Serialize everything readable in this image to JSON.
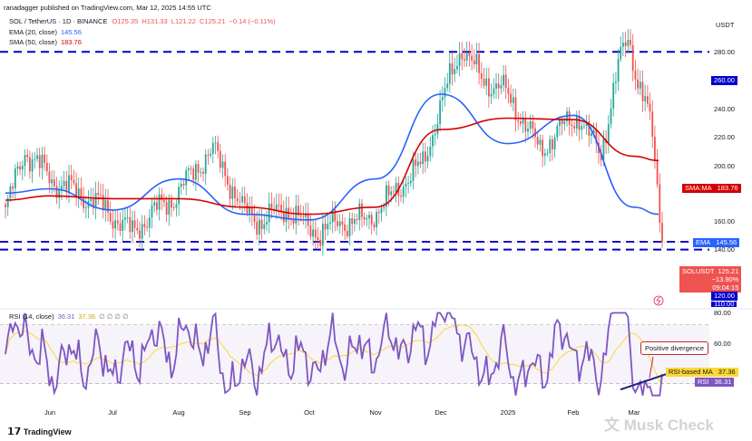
{
  "header": {
    "publisher": "ranadagger published on TradingView.com, Mar 12, 2025 14:55 UTC",
    "symbol_line": {
      "symbol": "SOL / TetherUS · 1D · BINANCE",
      "open": "O125.35",
      "high": "H131.33",
      "low": "L121.22",
      "close": "C125.21",
      "change": "−0.14 (−0.11%)"
    },
    "ema_label": "EMA (20, close)",
    "ema_value": "145.56",
    "sma_label": "SMA (50, close)",
    "sma_value": "183.76",
    "rsi_label": "RSI (14, close)",
    "rsi_value": "36.31",
    "rsi_ma_value": "37.36",
    "rsi_dots": "∅ ∅ ∅ ∅"
  },
  "colors": {
    "up": "#26a69a",
    "down": "#ef5350",
    "ema": "#2962ff",
    "sma": "#d50000",
    "rsi": "#7e57c2",
    "rsi_ma": "#fdd835",
    "level_line": "#0000cc",
    "price_badge": "#ef5350",
    "annotation": "#c62828",
    "trendline": "#1a237e"
  },
  "price_axis": {
    "unit": "USDT",
    "ticks": [
      "280.00",
      "240.00",
      "220.00",
      "200.00",
      "160.00",
      "140.00",
      "80.00"
    ],
    "levels": [
      "260.00",
      "120.00",
      "110.00"
    ],
    "badges": {
      "sma": {
        "name": "SMA:MA",
        "value": "183.76"
      },
      "ema": {
        "name": "EMA",
        "value": "145.56"
      },
      "price": {
        "name": "SOLUSDT",
        "value": "125.21",
        "change": "−13.90%",
        "time": "09:04:15"
      }
    }
  },
  "rsi_axis": {
    "ticks": [
      "60.00"
    ],
    "badges": {
      "ma": {
        "name": "RSI-based MA",
        "value": "37.36"
      },
      "rsi": {
        "name": "RSI",
        "value": "36.31"
      }
    },
    "annotation": "Positive divergence"
  },
  "x_axis": {
    "labels": [
      "Jun",
      "Jul",
      "Aug",
      "Sep",
      "Oct",
      "Nov",
      "Dec",
      "2025",
      "Feb",
      "Mar"
    ]
  },
  "footer": {
    "logo": "TradingView",
    "watermark": "文 Musk Check"
  },
  "chart_data": [
    {
      "type": "candlestick",
      "title": "SOL / TetherUS · 1D · BINANCE",
      "unit": "USDT",
      "ylim": [
        110,
        300
      ],
      "horizontal_levels": [
        260,
        125.5,
        120
      ],
      "series": [
        {
          "name": "EMA (20, close)",
          "values_by_label": {
            "Jun": 163,
            "Jul": 148,
            "Aug": 170,
            "Sep": 145,
            "Oct": 141,
            "Nov": 170,
            "Dec": 230,
            "2025": 195,
            "Feb": 215,
            "Mar": 150
          }
        },
        {
          "name": "SMA (50, close)",
          "values_by_label": {
            "Jun": 158,
            "Jul": 156,
            "Aug": 156,
            "Sep": 150,
            "Oct": 145,
            "Nov": 150,
            "Dec": 205,
            "2025": 213,
            "Feb": 212,
            "Mar": 186
          }
        }
      ],
      "anchors": {
        "first_price": 147,
        "peaks": [
          {
            "label": "Nov",
            "value": 264
          },
          {
            "label": "Feb",
            "value": 295
          }
        ],
        "last_close": 125.21,
        "last_low": 121.22
      }
    },
    {
      "type": "line",
      "title": "RSI (14, close)",
      "ylim": [
        20,
        80
      ],
      "reference_levels": [
        70,
        30
      ],
      "series": [
        {
          "name": "RSI (14, close)",
          "last": 36.31
        },
        {
          "name": "RSI-based MA",
          "last": 37.36
        }
      ],
      "divergence_trendline": {
        "from_rsi": 26,
        "to_rsi": 37
      }
    }
  ]
}
